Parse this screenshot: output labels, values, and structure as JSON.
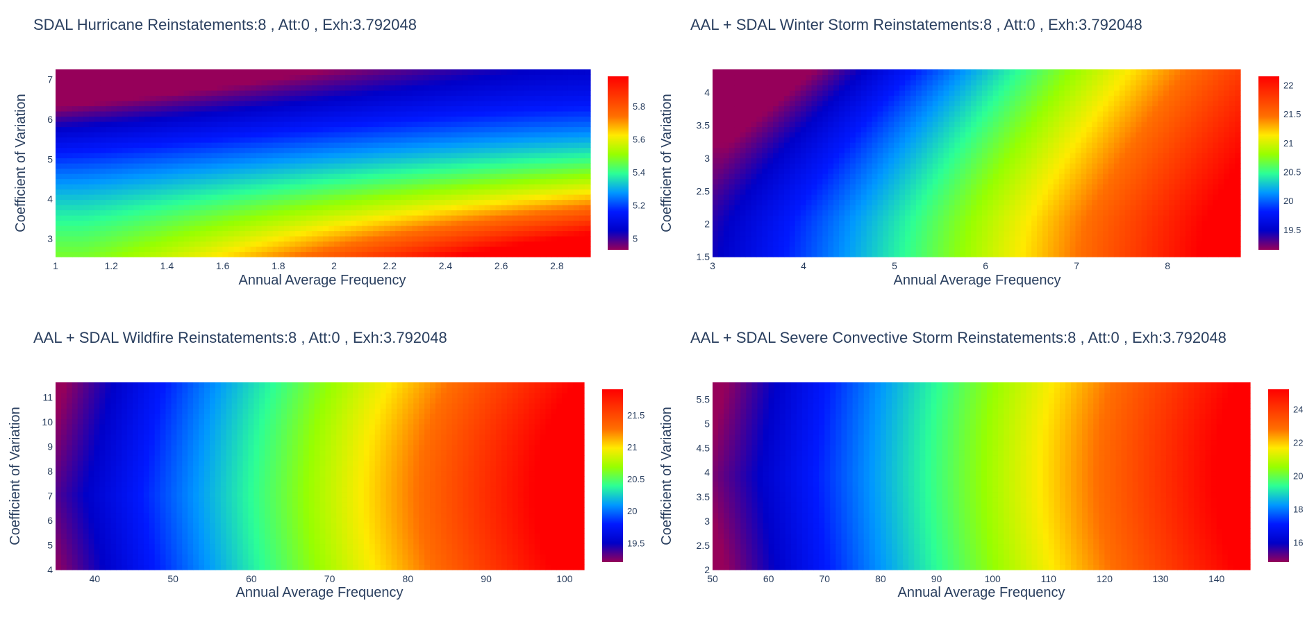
{
  "chart_data": [
    {
      "type": "heatmap",
      "title": "SDAL Hurricane  Reinstatements:8  , Att:0  , Exh:3.792048",
      "xlabel": "Annual Average Frequency",
      "ylabel": "Coefficient of Variation",
      "xlim": [
        1,
        2.92
      ],
      "ylim": [
        2.55,
        7.25
      ],
      "xticks": [
        1,
        1.2,
        1.4,
        1.6,
        1.8,
        2,
        2.2,
        2.4,
        2.6,
        2.8
      ],
      "yticks": [
        3,
        4,
        5,
        6,
        7
      ],
      "colorscale": "rainbow",
      "zlim": [
        4.93,
        5.98
      ],
      "colorbar_ticks": [
        5,
        5.2,
        5.4,
        5.6,
        5.8
      ],
      "corner_values": {
        "x_min_y_min": 5.35,
        "x_max_y_min": 5.98,
        "x_min_y_max": 4.93,
        "x_max_y_max": 5.1
      },
      "trend": "value increases toward high frequency and low coefficient of variation"
    },
    {
      "type": "heatmap",
      "title": "AAL + SDAL Winter Storm  Reinstatements:8  , Att:0  , Exh:3.792048",
      "xlabel": "Annual Average Frequency",
      "ylabel": "Coefficient of Variation",
      "xlim": [
        3,
        8.8
      ],
      "ylim": [
        1.5,
        4.35
      ],
      "xticks": [
        3,
        4,
        5,
        6,
        7,
        8
      ],
      "yticks": [
        1.5,
        2,
        2.5,
        3,
        3.5,
        4
      ],
      "colorscale": "rainbow",
      "zlim": [
        19.15,
        22.15
      ],
      "colorbar_ticks": [
        19.5,
        20,
        20.5,
        21,
        21.5,
        22
      ],
      "corner_values": {
        "x_min_y_min": 19.5,
        "x_max_y_min": 22.15,
        "x_min_y_max": 19.15,
        "x_max_y_max": 21.3
      },
      "trend": "value increases with frequency; curved contours"
    },
    {
      "type": "heatmap",
      "title": "AAL + SDAL Wildfire  Reinstatements:8  , Att:0  , Exh:3.792048",
      "xlabel": "Annual Average Frequency",
      "ylabel": "Coefficient of Variation",
      "xlim": [
        35,
        102.5
      ],
      "ylim": [
        4,
        11.6
      ],
      "xticks": [
        40,
        50,
        60,
        70,
        80,
        90,
        100
      ],
      "yticks": [
        4,
        5,
        6,
        7,
        8,
        9,
        10,
        11
      ],
      "colorscale": "rainbow",
      "zlim": [
        19.2,
        21.9
      ],
      "colorbar_ticks": [
        19.5,
        20,
        20.5,
        21,
        21.5
      ],
      "corner_values": {
        "x_min_y_min": 19.3,
        "x_max_y_mid": 21.9,
        "x_min_y_max": 19.2,
        "x_max_y_max": 21.3
      },
      "trend": "value increases with frequency; contours bulge around CoV 7"
    },
    {
      "type": "heatmap",
      "title": "AAL + SDAL Severe Convective Storm  Reinstatements:8  , Att:0  , Exh:3.792048",
      "xlabel": "Annual Average Frequency",
      "ylabel": "Coefficient of Variation",
      "xlim": [
        50,
        146
      ],
      "ylim": [
        2,
        5.85
      ],
      "xticks": [
        50,
        60,
        70,
        80,
        90,
        100,
        110,
        120,
        130,
        140
      ],
      "yticks": [
        2,
        2.5,
        3,
        3.5,
        4,
        4.5,
        5,
        5.5
      ],
      "colorscale": "rainbow",
      "zlim": [
        14.8,
        25.2
      ],
      "colorbar_ticks": [
        16,
        18,
        20,
        22,
        24
      ],
      "corner_values": {
        "x_min_y_min": 14.9,
        "x_max_y_mid": 25.2,
        "x_min_y_max": 15.0,
        "x_max_y_max": 24.5
      },
      "trend": "value increases with frequency; contours bulge around CoV 3.9"
    }
  ]
}
